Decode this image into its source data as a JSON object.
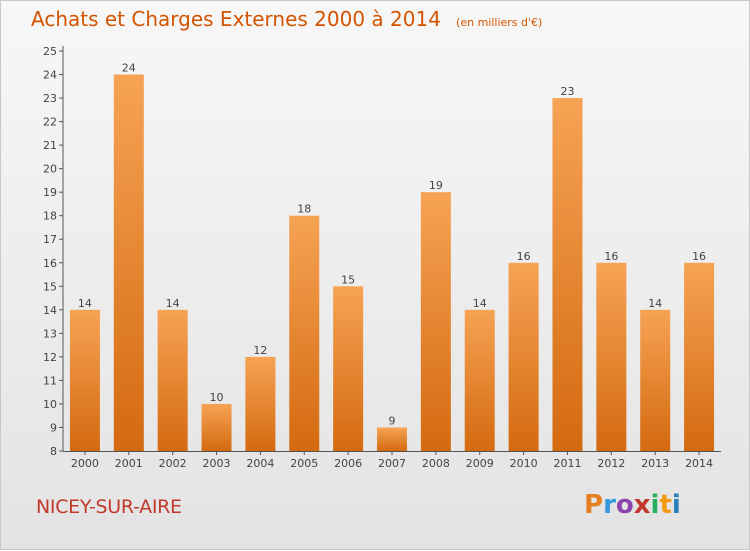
{
  "header": {
    "title": "Achats et Charges Externes 2000 à 2014",
    "unit": "(en milliers d'€)"
  },
  "footer": {
    "location": "NICEY-SUR-AIRE",
    "logo": {
      "text": "Proxiti",
      "letter_colors": [
        "#e67e22",
        "#3498db",
        "#8e44ad",
        "#c0392b",
        "#27ae60",
        "#f39c12",
        "#2980b9"
      ]
    }
  },
  "colors": {
    "bar_light": "#f6a354",
    "bar_dark": "#d46a10",
    "title": "#d35400",
    "location": "#c0392b"
  },
  "chart_data": {
    "type": "bar",
    "categories": [
      "2000",
      "2001",
      "2002",
      "2003",
      "2004",
      "2005",
      "2006",
      "2007",
      "2008",
      "2009",
      "2010",
      "2011",
      "2012",
      "2013",
      "2014"
    ],
    "values": [
      14,
      24,
      14,
      10,
      12,
      18,
      15,
      9,
      19,
      14,
      16,
      23,
      16,
      14,
      16
    ],
    "ylim": [
      8,
      25
    ],
    "yticks": [
      8,
      9,
      10,
      11,
      12,
      13,
      14,
      15,
      16,
      17,
      18,
      19,
      20,
      21,
      22,
      23,
      24,
      25
    ],
    "grid": false,
    "data_labels": true
  }
}
